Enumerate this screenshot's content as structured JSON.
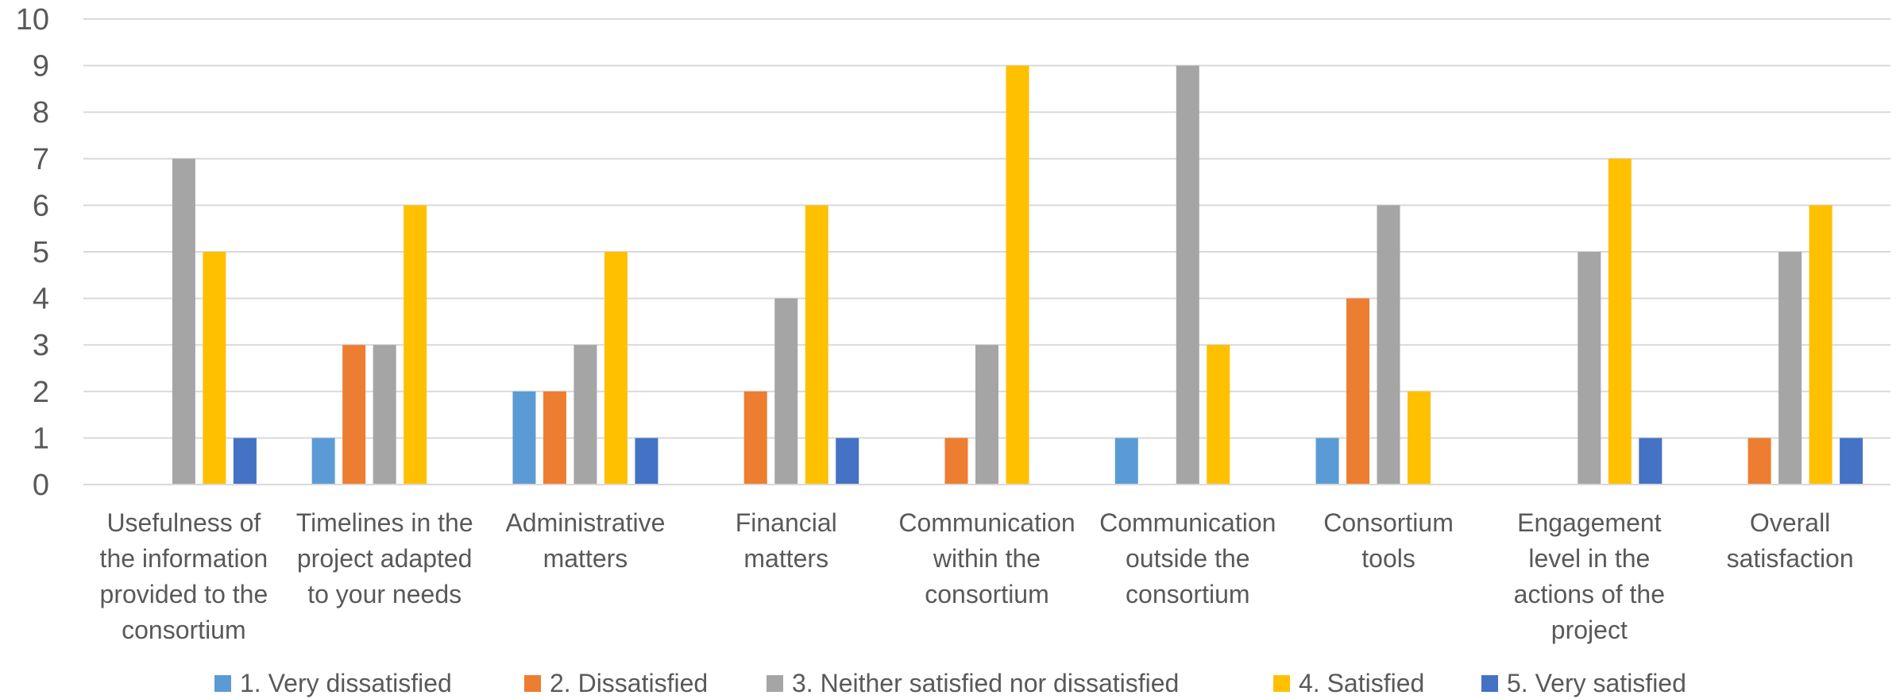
{
  "chart_data": {
    "type": "bar",
    "categories": [
      [
        "Usefulness of",
        "the information",
        "provided to the",
        "consortium"
      ],
      [
        "Timelines in the",
        "project adapted",
        "to your needs"
      ],
      [
        "Administrative",
        "matters"
      ],
      [
        "Financial",
        "matters"
      ],
      [
        "Communication",
        "within the",
        "consortium"
      ],
      [
        "Communication",
        "outside the",
        "consortium"
      ],
      [
        "Consortium",
        "tools"
      ],
      [
        "Engagement",
        "level in the",
        "actions of the",
        "project"
      ],
      [
        "Overall",
        "satisfaction"
      ]
    ],
    "series": [
      {
        "name": "1. Very dissatisfied",
        "color": "#5B9BD5",
        "values": [
          0,
          1,
          2,
          0,
          0,
          1,
          1,
          0,
          0
        ]
      },
      {
        "name": "2. Dissatisfied",
        "color": "#ED7D31",
        "values": [
          0,
          3,
          2,
          2,
          1,
          0,
          4,
          0,
          1
        ]
      },
      {
        "name": "3. Neither satisfied nor dissatisfied",
        "color": "#A5A5A5",
        "values": [
          7,
          3,
          3,
          4,
          3,
          9,
          6,
          5,
          5
        ]
      },
      {
        "name": "4. Satisfied",
        "color": "#FFC000",
        "values": [
          5,
          6,
          5,
          6,
          9,
          3,
          2,
          7,
          6
        ]
      },
      {
        "name": "5. Very satisfied",
        "color": "#4472C4",
        "values": [
          1,
          0,
          1,
          1,
          0,
          0,
          0,
          1,
          1
        ]
      }
    ],
    "yticks": [
      "0",
      "1",
      "2",
      "3",
      "4",
      "5",
      "6",
      "7",
      "8",
      "9",
      "10"
    ],
    "ylim": [
      0,
      10
    ],
    "grid": true,
    "legend": "bottom",
    "title": "",
    "xlabel": "",
    "ylabel": ""
  }
}
